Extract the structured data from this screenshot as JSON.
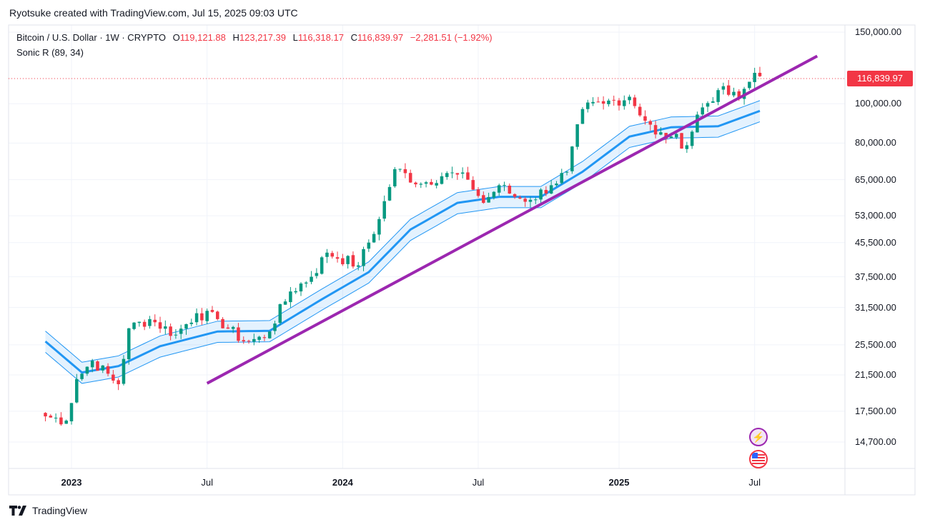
{
  "header": {
    "attribution": "Ryotsuke created with TradingView.com, Jul 15, 2025 09:03 UTC"
  },
  "legend": {
    "symbol": "Bitcoin / U.S. Dollar · 1W · CRYPTO",
    "o_label": "O",
    "o_value": "119,121.88",
    "h_label": "H",
    "h_value": "123,217.39",
    "l_label": "L",
    "l_value": "116,318.17",
    "c_label": "C",
    "c_value": "116,839.97",
    "change": "−2,281.51 (−1.92%)",
    "indicator": "Sonic R (89, 34)"
  },
  "price_badge": "116,839.97",
  "footer": {
    "brand": "TradingView"
  },
  "icons": {
    "lightning": "lightning-icon",
    "flag": "us-flag-icon"
  },
  "colors": {
    "up": "#089981",
    "down": "#f23645",
    "band": "#2196f3",
    "trendline": "#9c27b0"
  },
  "chart_data": {
    "type": "candlestick",
    "title": "",
    "y_scale": "log",
    "y_ticks": [
      "150,000.00",
      "100,000.00",
      "80,000.00",
      "65,000.00",
      "53,000.00",
      "45,500.00",
      "37,500.00",
      "31,500.00",
      "25,500.00",
      "21,500.00",
      "17,500.00",
      "14,700.00"
    ],
    "x_ticks": [
      "2023",
      "Jul",
      "2024",
      "Jul",
      "2025",
      "Jul"
    ],
    "last_close": 116839.97,
    "anchors": [
      [
        "2022-11-28",
        17000
      ],
      [
        "2022-12-26",
        16600
      ],
      [
        "2023-01-09",
        21000
      ],
      [
        "2023-01-30",
        23300
      ],
      [
        "2023-03-06",
        20400
      ],
      [
        "2023-03-20",
        28000
      ],
      [
        "2023-04-17",
        29500
      ],
      [
        "2023-05-22",
        27000
      ],
      [
        "2023-06-19",
        30500
      ],
      [
        "2023-07-17",
        29500
      ],
      [
        "2023-08-21",
        26000
      ],
      [
        "2023-09-18",
        26500
      ],
      [
        "2023-10-23",
        34500
      ],
      [
        "2023-11-20",
        37500
      ],
      [
        "2023-12-11",
        43000
      ],
      [
        "2024-01-22",
        40000
      ],
      [
        "2024-02-19",
        52000
      ],
      [
        "2024-03-11",
        69000
      ],
      [
        "2024-04-15",
        63500
      ],
      [
        "2024-05-20",
        67500
      ],
      [
        "2024-06-17",
        65000
      ],
      [
        "2024-07-08",
        57000
      ],
      [
        "2024-07-29",
        63000
      ],
      [
        "2024-08-19",
        59000
      ],
      [
        "2024-09-09",
        58000
      ],
      [
        "2024-10-07",
        63000
      ],
      [
        "2024-10-28",
        68000
      ],
      [
        "2024-11-18",
        97000
      ],
      [
        "2024-12-16",
        100000
      ],
      [
        "2025-01-20",
        104000
      ],
      [
        "2025-02-24",
        84000
      ],
      [
        "2025-03-17",
        83000
      ],
      [
        "2025-04-07",
        79000
      ],
      [
        "2025-04-21",
        94000
      ],
      [
        "2025-05-19",
        108000
      ],
      [
        "2025-06-16",
        103000
      ],
      [
        "2025-07-07",
        119100
      ],
      [
        "2025-07-14",
        116840
      ]
    ],
    "sonic_r_center": [
      [
        "2022-11-28",
        26000
      ],
      [
        "2023-01-16",
        21800
      ],
      [
        "2023-03-06",
        22600
      ],
      [
        "2023-05-01",
        25300
      ],
      [
        "2023-07-17",
        27500
      ],
      [
        "2023-09-25",
        27600
      ],
      [
        "2023-12-04",
        33000
      ],
      [
        "2024-02-05",
        38500
      ],
      [
        "2024-04-01",
        49000
      ],
      [
        "2024-06-03",
        57000
      ],
      [
        "2024-07-29",
        59000
      ],
      [
        "2024-09-23",
        59000
      ],
      [
        "2024-11-18",
        68000
      ],
      [
        "2025-01-20",
        83000
      ],
      [
        "2025-03-17",
        87500
      ],
      [
        "2025-05-19",
        88000
      ],
      [
        "2025-07-14",
        96000
      ]
    ],
    "sonic_r_width_pct": 6,
    "trendline": [
      [
        "2023-07-03",
        20500
      ],
      [
        "2025-09-29",
        131000
      ]
    ]
  }
}
